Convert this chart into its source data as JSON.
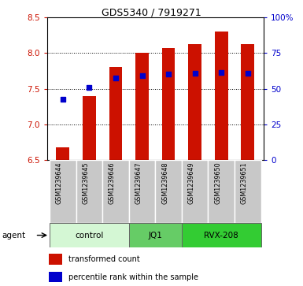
{
  "title": "GDS5340 / 7919271",
  "samples": [
    "GSM1239644",
    "GSM1239645",
    "GSM1239646",
    "GSM1239647",
    "GSM1239648",
    "GSM1239649",
    "GSM1239650",
    "GSM1239651"
  ],
  "bar_bottom": 6.5,
  "bar_tops": [
    6.68,
    7.4,
    7.8,
    8.0,
    8.07,
    8.12,
    8.3,
    8.12
  ],
  "percentile_values": [
    7.35,
    7.52,
    7.65,
    7.68,
    7.7,
    7.72,
    7.73,
    7.72
  ],
  "ylim_left": [
    6.5,
    8.5
  ],
  "ylim_right": [
    0,
    100
  ],
  "yticks_left": [
    6.5,
    7.0,
    7.5,
    8.0,
    8.5
  ],
  "yticks_right": [
    0,
    25,
    50,
    75,
    100
  ],
  "ytick_labels_right": [
    "0",
    "25",
    "50",
    "75",
    "100%"
  ],
  "bar_color": "#cc1100",
  "percentile_color": "#0000cc",
  "groups": [
    {
      "label": "control",
      "indices": [
        0,
        1,
        2
      ],
      "color": "#d4f7d4"
    },
    {
      "label": "JQ1",
      "indices": [
        3,
        4
      ],
      "color": "#66cc66"
    },
    {
      "label": "RVX-208",
      "indices": [
        5,
        6,
        7
      ],
      "color": "#33cc33"
    }
  ],
  "sample_bg_color": "#c8c8c8",
  "agent_label": "agent",
  "legend_bar_label": "transformed count",
  "legend_point_label": "percentile rank within the sample",
  "tick_label_color_left": "#cc1100",
  "tick_label_color_right": "#0000cc"
}
